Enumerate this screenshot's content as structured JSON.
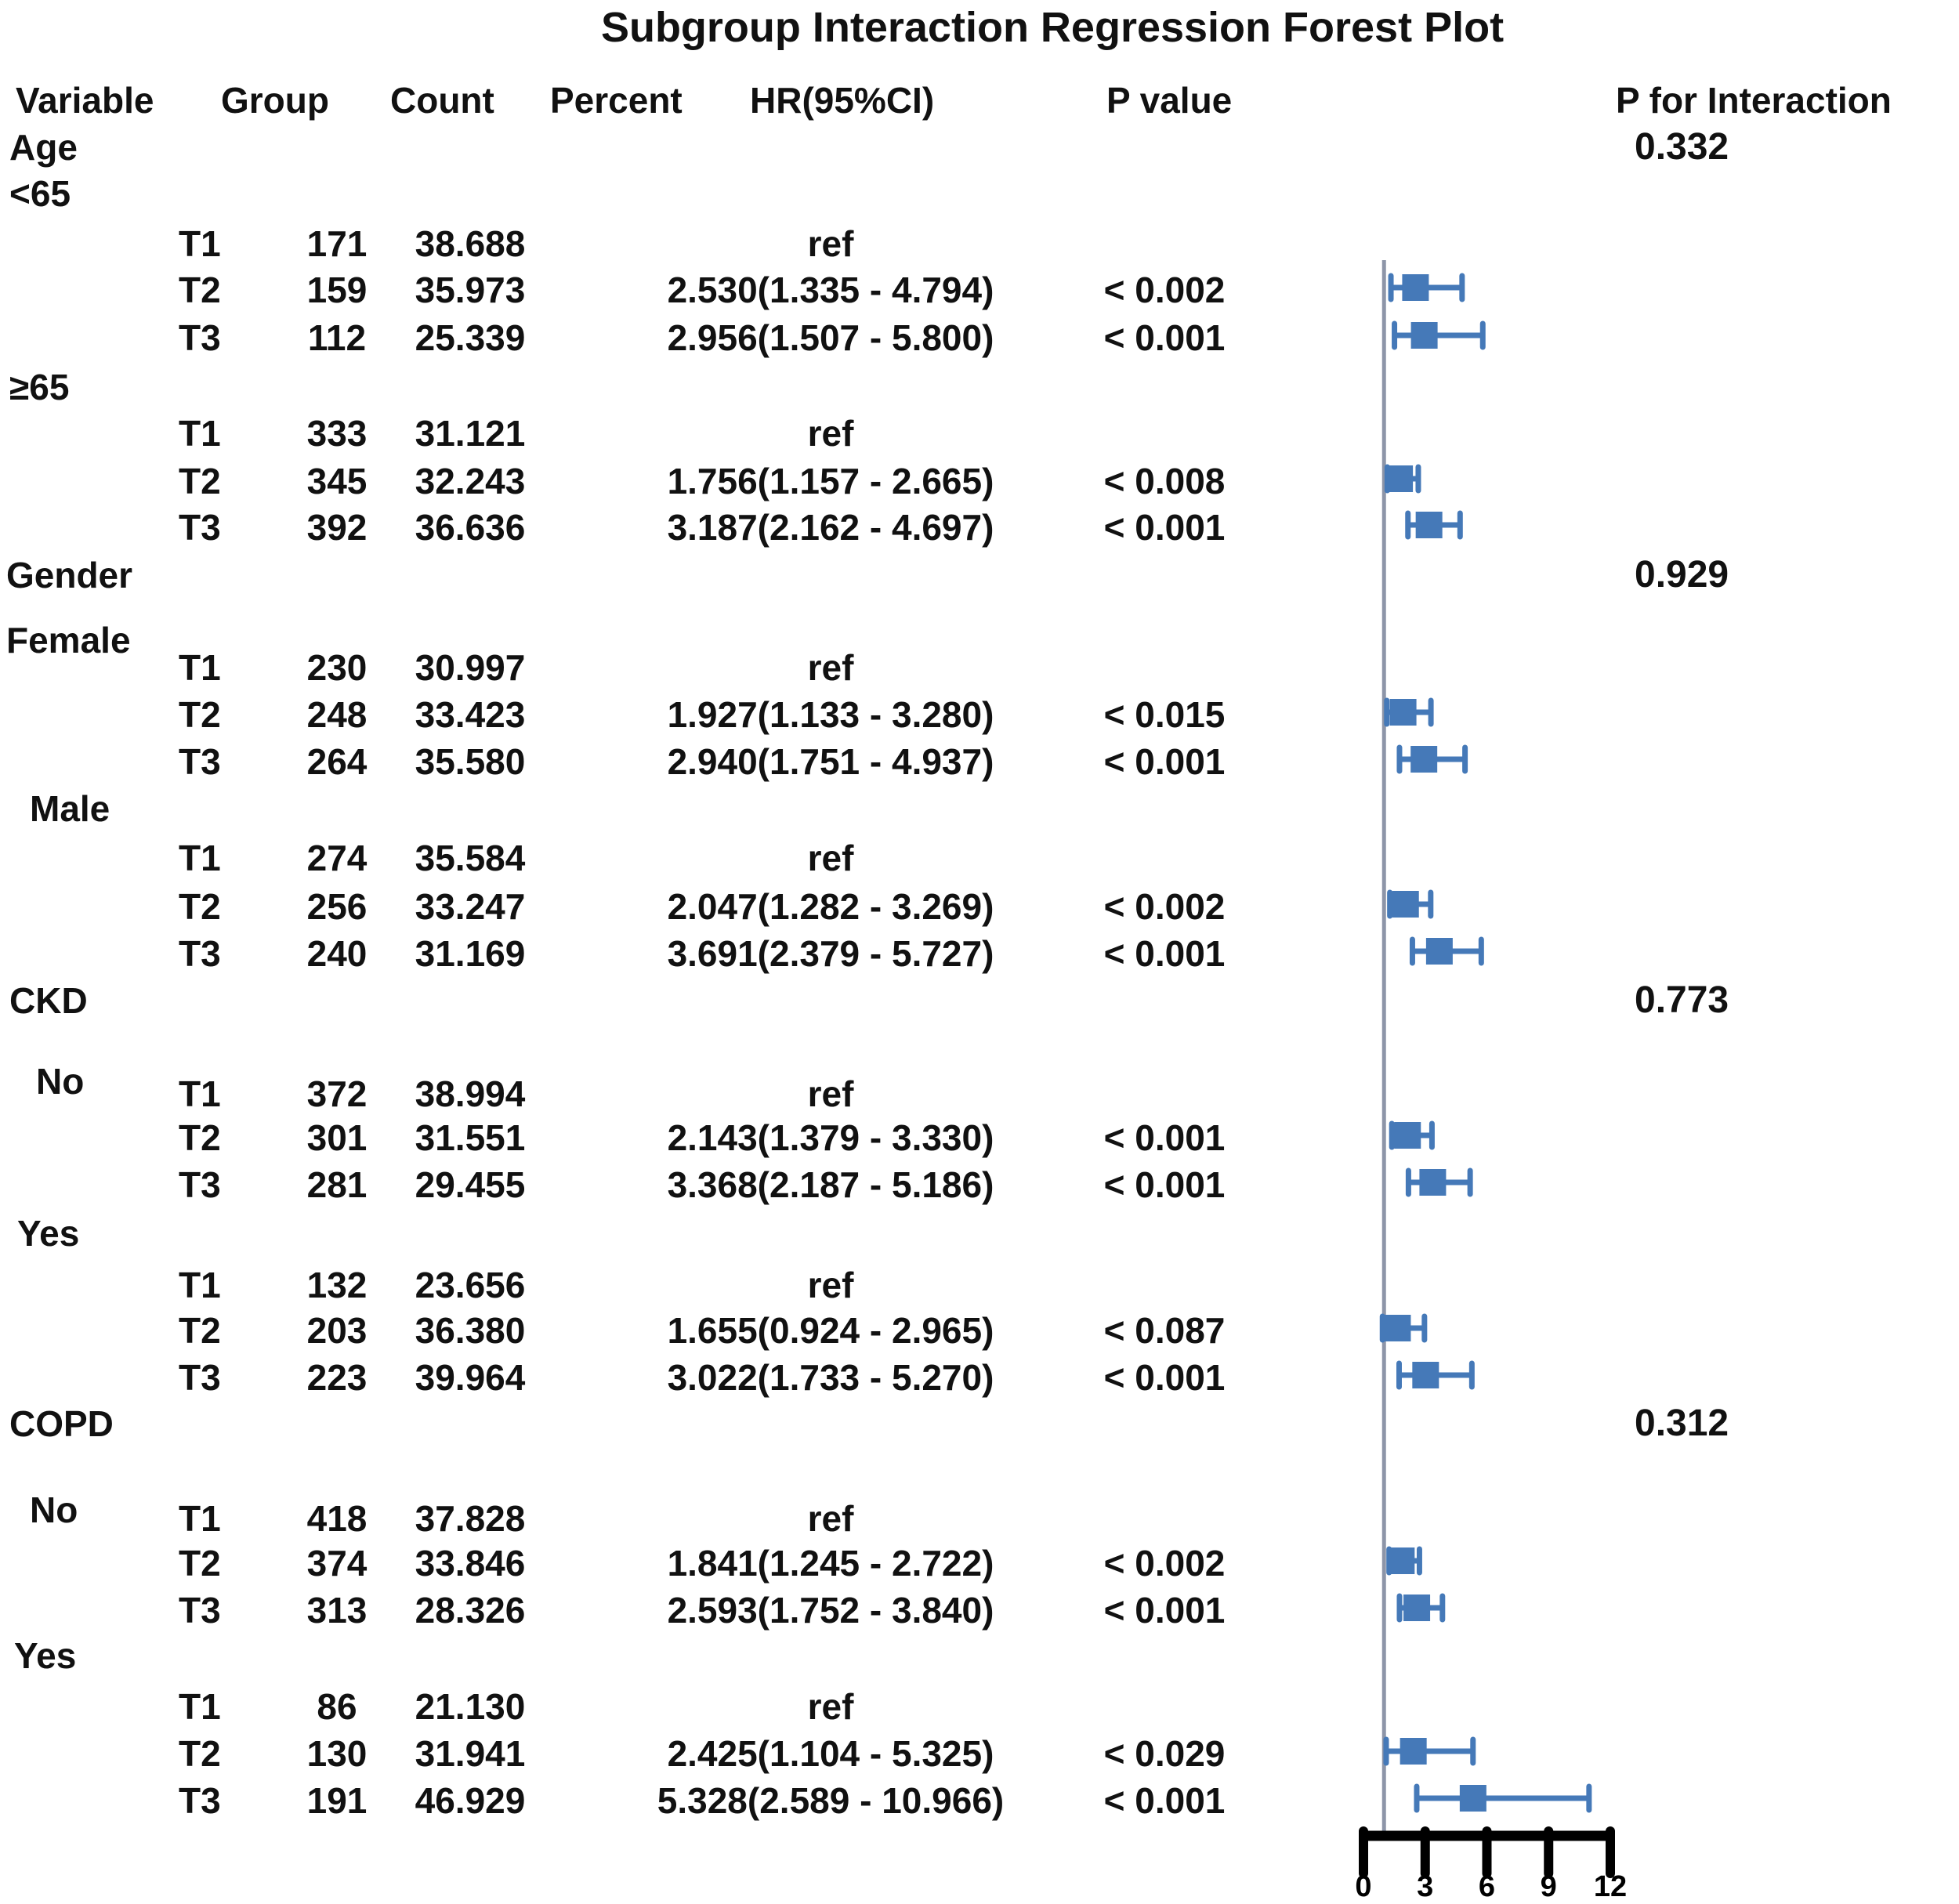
{
  "title": "Subgroup Interaction Regression Forest Plot",
  "headers": {
    "variable": "Variable",
    "group": "Group",
    "count": "Count",
    "percent": "Percent",
    "hr": "HR(95%CI)",
    "p_value": "P value",
    "p_interaction": "P for Interaction"
  },
  "colors": {
    "marker_blue": "#4579B8",
    "reference_line": "#8D95A8",
    "axis_black": "#000000",
    "text": "#111111"
  },
  "chart_data": {
    "type": "scatter",
    "variant": "forest-plot",
    "title": "Subgroup Interaction Regression Forest Plot",
    "x_axis": {
      "min": 0,
      "max": 12,
      "ticks": [
        "0",
        "3",
        "6",
        "9",
        "12"
      ],
      "reference_line_x": 1
    },
    "grid": false,
    "legend": false,
    "groups": [
      {
        "variable": "Age",
        "p_for_interaction": "0.332",
        "subgroups": [
          {
            "label": "<65",
            "rows": [
              {
                "group": "T1",
                "count": "171",
                "percent": "38.688",
                "hr": "ref"
              },
              {
                "group": "T2",
                "count": "159",
                "percent": "35.973",
                "hr": "2.530(1.335 - 4.794)",
                "p": "< 0.002",
                "est": 2.53,
                "lo": 1.335,
                "hi": 4.794
              },
              {
                "group": "T3",
                "count": "112",
                "percent": "25.339",
                "hr": "2.956(1.507 - 5.800)",
                "p": "< 0.001",
                "est": 2.956,
                "lo": 1.507,
                "hi": 5.8
              }
            ]
          },
          {
            "label": "≥65",
            "rows": [
              {
                "group": "T1",
                "count": "333",
                "percent": "31.121",
                "hr": "ref"
              },
              {
                "group": "T2",
                "count": "345",
                "percent": "32.243",
                "hr": "1.756(1.157 - 2.665)",
                "p": "< 0.008",
                "est": 1.756,
                "lo": 1.157,
                "hi": 2.665
              },
              {
                "group": "T3",
                "count": "392",
                "percent": "36.636",
                "hr": "3.187(2.162 - 4.697)",
                "p": "< 0.001",
                "est": 3.187,
                "lo": 2.162,
                "hi": 4.697
              }
            ]
          }
        ]
      },
      {
        "variable": "Gender",
        "p_for_interaction": "0.929",
        "subgroups": [
          {
            "label": "Female",
            "rows": [
              {
                "group": "T1",
                "count": "230",
                "percent": "30.997",
                "hr": "ref"
              },
              {
                "group": "T2",
                "count": "248",
                "percent": "33.423",
                "hr": "1.927(1.133 - 3.280)",
                "p": "< 0.015",
                "est": 1.927,
                "lo": 1.133,
                "hi": 3.28
              },
              {
                "group": "T3",
                "count": "264",
                "percent": "35.580",
                "hr": "2.940(1.751 - 4.937)",
                "p": "< 0.001",
                "est": 2.94,
                "lo": 1.751,
                "hi": 4.937
              }
            ]
          },
          {
            "label": "Male",
            "rows": [
              {
                "group": "T1",
                "count": "274",
                "percent": "35.584",
                "hr": "ref"
              },
              {
                "group": "T2",
                "count": "256",
                "percent": "33.247",
                "hr": "2.047(1.282 - 3.269)",
                "p": "< 0.002",
                "est": 2.047,
                "lo": 1.282,
                "hi": 3.269
              },
              {
                "group": "T3",
                "count": "240",
                "percent": "31.169",
                "hr": "3.691(2.379 - 5.727)",
                "p": "< 0.001",
                "est": 3.691,
                "lo": 2.379,
                "hi": 5.727
              }
            ]
          }
        ]
      },
      {
        "variable": "CKD",
        "p_for_interaction": "0.773",
        "subgroups": [
          {
            "label": "No",
            "rows": [
              {
                "group": "T1",
                "count": "372",
                "percent": "38.994",
                "hr": "ref"
              },
              {
                "group": "T2",
                "count": "301",
                "percent": "31.551",
                "hr": "2.143(1.379 - 3.330)",
                "p": "< 0.001",
                "est": 2.143,
                "lo": 1.379,
                "hi": 3.33
              },
              {
                "group": "T3",
                "count": "281",
                "percent": "29.455",
                "hr": "3.368(2.187 - 5.186)",
                "p": "< 0.001",
                "est": 3.368,
                "lo": 2.187,
                "hi": 5.186
              }
            ]
          },
          {
            "label": "Yes",
            "rows": [
              {
                "group": "T1",
                "count": "132",
                "percent": "23.656",
                "hr": "ref"
              },
              {
                "group": "T2",
                "count": "203",
                "percent": "36.380",
                "hr": "1.655(0.924 - 2.965)",
                "p": "< 0.087",
                "est": 1.655,
                "lo": 0.924,
                "hi": 2.965
              },
              {
                "group": "T3",
                "count": "223",
                "percent": "39.964",
                "hr": "3.022(1.733 - 5.270)",
                "p": "< 0.001",
                "est": 3.022,
                "lo": 1.733,
                "hi": 5.27
              }
            ]
          }
        ]
      },
      {
        "variable": "COPD",
        "p_for_interaction": "0.312",
        "subgroups": [
          {
            "label": "No",
            "rows": [
              {
                "group": "T1",
                "count": "418",
                "percent": "37.828",
                "hr": "ref"
              },
              {
                "group": "T2",
                "count": "374",
                "percent": "33.846",
                "hr": "1.841(1.245 - 2.722)",
                "p": "< 0.002",
                "est": 1.841,
                "lo": 1.245,
                "hi": 2.722
              },
              {
                "group": "T3",
                "count": "313",
                "percent": "28.326",
                "hr": "2.593(1.752 - 3.840)",
                "p": "< 0.001",
                "est": 2.593,
                "lo": 1.752,
                "hi": 3.84
              }
            ]
          },
          {
            "label": "Yes",
            "rows": [
              {
                "group": "T1",
                "count": "86",
                "percent": "21.130",
                "hr": "ref"
              },
              {
                "group": "T2",
                "count": "130",
                "percent": "31.941",
                "hr": "2.425(1.104 - 5.325)",
                "p": "< 0.029",
                "est": 2.425,
                "lo": 1.104,
                "hi": 5.325
              },
              {
                "group": "T3",
                "count": "191",
                "percent": "46.929",
                "hr": "5.328(2.589 - 10.966)",
                "p": "< 0.001",
                "est": 5.328,
                "lo": 2.589,
                "hi": 10.966
              }
            ]
          }
        ]
      }
    ]
  }
}
